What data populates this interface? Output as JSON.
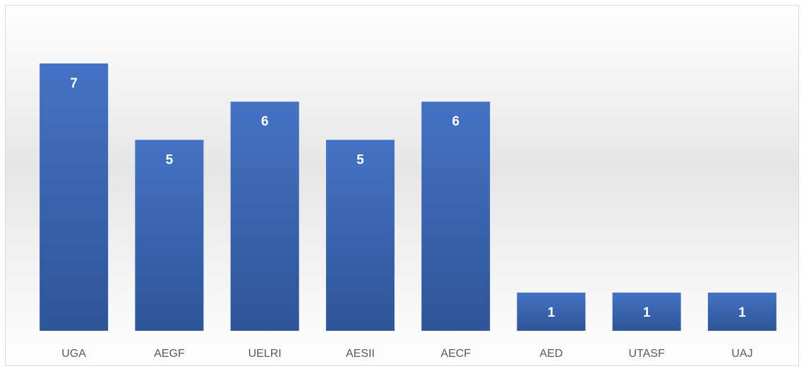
{
  "chart_data": {
    "type": "bar",
    "categories": [
      "UGA",
      "AEGF",
      "UELRI",
      "AESII",
      "AECF",
      "AED",
      "UTASF",
      "UAJ"
    ],
    "values": [
      7,
      5,
      6,
      5,
      6,
      1,
      1,
      1
    ],
    "color": "#4472c4",
    "data_labels": true
  }
}
